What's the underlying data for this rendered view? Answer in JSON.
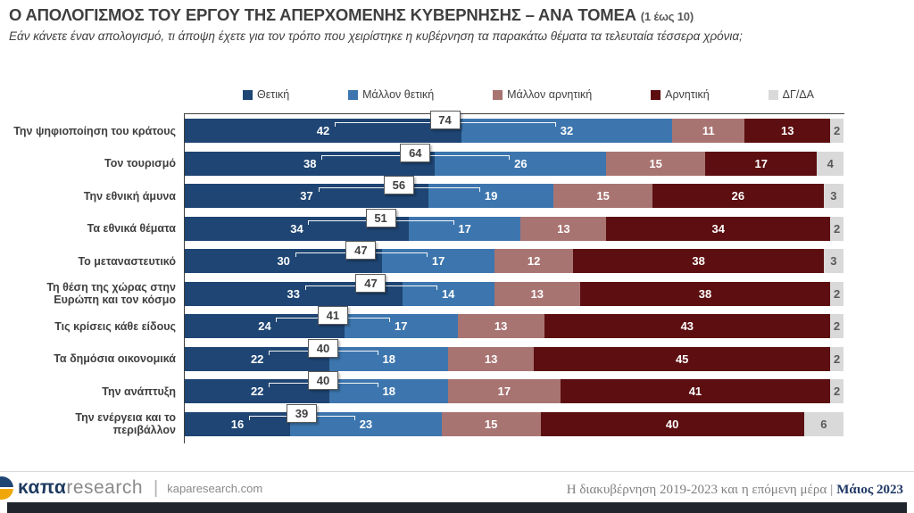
{
  "header": {
    "title": "Ο ΑΠΟΛΟΓΙΣΜΟΣ ΤΟΥ ΕΡΓΟΥ ΤΗΣ ΑΠΕΡΧΟΜΕΝΗΣ ΚΥΒΕΡΝΗΣΗΣ – ΑΝΑ ΤΟΜΕΑ",
    "title_suffix": "(1 έως 10)",
    "subtitle": "Εάν κάνετε έναν απολογισμό, τι άποψη έχετε για τον τρόπο που χειρίστηκε η κυβέρνηση τα παρακάτω θέματα τα τελευταία τέσσερα χρόνια;"
  },
  "colors": {
    "positive": "#1e4573",
    "rather_positive": "#3d76ae",
    "rather_negative": "#a87472",
    "negative": "#5c0e10",
    "dk_na": "#d9d9d9",
    "axis": "#3f3f3f",
    "gray_text": "#595959",
    "footer_accent": "#1f3864",
    "logo_blue": "#1e4573",
    "logo_yellow": "#f0a70a"
  },
  "chart_data": {
    "type": "bar",
    "stacked": true,
    "orientation": "horizontal",
    "unit": "percent",
    "legend_position": "top",
    "xlim": [
      0,
      100
    ],
    "series_names": [
      "Θετική",
      "Μάλλον θετική",
      "Μάλλον αρνητική",
      "Αρνητική",
      "ΔΓ/ΔΑ"
    ],
    "series_colors": [
      "#1e4573",
      "#3d76ae",
      "#a87472",
      "#5c0e10",
      "#d9d9d9"
    ],
    "callout_note": "boxed value = Θετική + Μάλλον θετική",
    "rows": [
      {
        "category": "Την ψηφιοποίηση του κράτους",
        "values": [
          42,
          32,
          11,
          13,
          2
        ],
        "positive_total": 74
      },
      {
        "category": "Τον τουρισμό",
        "values": [
          38,
          26,
          15,
          17,
          4
        ],
        "positive_total": 64
      },
      {
        "category": "Την εθνική άμυνα",
        "values": [
          37,
          19,
          15,
          26,
          3
        ],
        "positive_total": 56
      },
      {
        "category": "Τα εθνικά θέματα",
        "values": [
          34,
          17,
          13,
          34,
          2
        ],
        "positive_total": 51
      },
      {
        "category": "Το μεταναστευτικό",
        "values": [
          30,
          17,
          12,
          38,
          3
        ],
        "positive_total": 47
      },
      {
        "category": "Τη θέση της χώρας στην Ευρώπη και τον κόσμο",
        "values": [
          33,
          14,
          13,
          38,
          2
        ],
        "positive_total": 47
      },
      {
        "category": "Τις κρίσεις κάθε είδους",
        "values": [
          24,
          17,
          13,
          43,
          2
        ],
        "positive_total": 41
      },
      {
        "category": "Τα δημόσια οικονομικά",
        "values": [
          22,
          18,
          13,
          45,
          2
        ],
        "positive_total": 40
      },
      {
        "category": "Την ανάπτυξη",
        "values": [
          22,
          18,
          17,
          41,
          2
        ],
        "positive_total": 40
      },
      {
        "category": "Την ενέργεια και το περιβάλλον",
        "values": [
          16,
          23,
          15,
          40,
          6
        ],
        "positive_total": 39
      }
    ]
  },
  "footer": {
    "logo_bold": "καπα",
    "logo_light": "research",
    "logo_divider": "|",
    "website": "kaparesearch.com",
    "right_text": "Η διακυβέρνηση 2019-2023 και η επόμενη μέρα",
    "right_separator": "|",
    "right_date": "Μάιος 2023"
  }
}
